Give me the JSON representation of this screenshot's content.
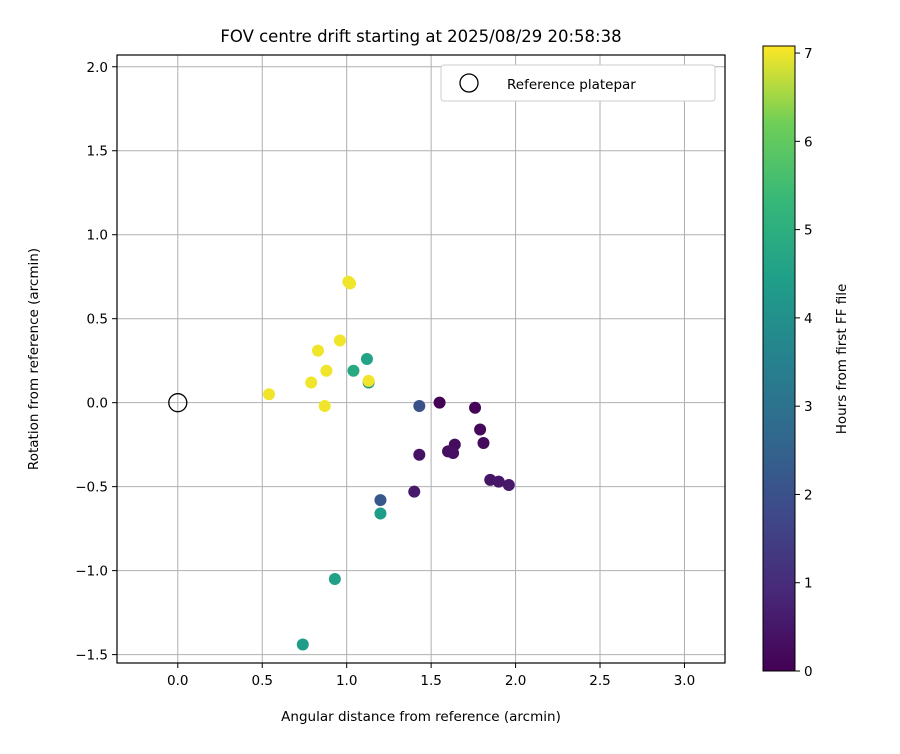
{
  "chart_data": {
    "type": "scatter",
    "title": "FOV centre drift starting at 2025/08/29 20:58:38",
    "xlabel": "Angular distance from reference (arcmin)",
    "ylabel": "Rotation from reference (arcmin)",
    "xlim": [
      -0.36,
      3.24
    ],
    "ylim": [
      -1.55,
      2.07
    ],
    "xticks": [
      0.0,
      0.5,
      1.0,
      1.5,
      2.0,
      2.5,
      3.0
    ],
    "yticks": [
      -1.5,
      -1.0,
      -0.5,
      0.0,
      0.5,
      1.0,
      1.5,
      2.0
    ],
    "xtick_labels": [
      "0.0",
      "0.5",
      "1.0",
      "1.5",
      "2.0",
      "2.5",
      "3.0"
    ],
    "ytick_labels": [
      "−1.5",
      "−1.0",
      "−0.5",
      "0.0",
      "0.5",
      "1.0",
      "1.5",
      "2.0"
    ],
    "grid": true,
    "legend": {
      "position": "upper-right",
      "entries": [
        "Reference platepar"
      ]
    },
    "reference": {
      "name": "Reference platepar",
      "x": 0.0,
      "y": 0.0,
      "marker": "open-circle"
    },
    "colorbar": {
      "label": "Hours from first FF file",
      "colormap": "viridis",
      "range": [
        0,
        7.08
      ],
      "ticks": [
        0,
        1,
        2,
        3,
        4,
        5,
        6,
        7
      ],
      "tick_labels": [
        "0",
        "1",
        "2",
        "3",
        "4",
        "5",
        "6",
        "7"
      ]
    },
    "series": [
      {
        "points": [
          {
            "x": 1.55,
            "y": 0.0,
            "c": 0.05
          },
          {
            "x": 1.76,
            "y": -0.03,
            "c": 0.1
          },
          {
            "x": 1.79,
            "y": -0.16,
            "c": 0.15
          },
          {
            "x": 1.81,
            "y": -0.24,
            "c": 0.2
          },
          {
            "x": 1.64,
            "y": -0.25,
            "c": 0.25
          },
          {
            "x": 1.6,
            "y": -0.29,
            "c": 0.3
          },
          {
            "x": 1.63,
            "y": -0.3,
            "c": 0.35
          },
          {
            "x": 1.43,
            "y": -0.31,
            "c": 0.4
          },
          {
            "x": 1.85,
            "y": -0.46,
            "c": 0.45
          },
          {
            "x": 1.9,
            "y": -0.47,
            "c": 0.5
          },
          {
            "x": 1.96,
            "y": -0.49,
            "c": 0.55
          },
          {
            "x": 1.4,
            "y": -0.53,
            "c": 0.6
          },
          {
            "x": 1.43,
            "y": -0.02,
            "c": 2.0
          },
          {
            "x": 1.2,
            "y": -0.58,
            "c": 2.2
          },
          {
            "x": 1.13,
            "y": 0.12,
            "c": 4.2
          },
          {
            "x": 1.2,
            "y": -0.66,
            "c": 4.4
          },
          {
            "x": 0.93,
            "y": -1.05,
            "c": 4.5
          },
          {
            "x": 0.74,
            "y": -1.44,
            "c": 4.4
          },
          {
            "x": 1.12,
            "y": 0.26,
            "c": 4.6
          },
          {
            "x": 1.04,
            "y": 0.19,
            "c": 4.8
          },
          {
            "x": 0.54,
            "y": 0.05,
            "c": 7.0
          },
          {
            "x": 0.79,
            "y": 0.12,
            "c": 7.0
          },
          {
            "x": 0.83,
            "y": 0.31,
            "c": 7.0
          },
          {
            "x": 0.88,
            "y": 0.19,
            "c": 7.0
          },
          {
            "x": 0.87,
            "y": -0.02,
            "c": 7.0
          },
          {
            "x": 0.96,
            "y": 0.37,
            "c": 7.0
          },
          {
            "x": 1.01,
            "y": 0.72,
            "c": 7.0
          },
          {
            "x": 1.02,
            "y": 0.71,
            "c": 7.0
          },
          {
            "x": 1.13,
            "y": 0.13,
            "c": 7.0
          }
        ]
      }
    ]
  }
}
